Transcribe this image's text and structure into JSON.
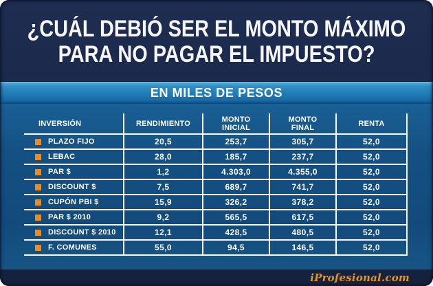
{
  "title": {
    "line1": "¿CUÁL DEBIÓ SER EL MONTO MÁXIMO",
    "line2": "PARA NO PAGAR EL IMPUESTO?"
  },
  "band": {
    "label": "EN MILES DE PESOS"
  },
  "table": {
    "columns": [
      "INVERSIÓN",
      "RENDIMIENTO",
      "MONTO\nINICIAL",
      "MONTO\nFINAL",
      "RENTA"
    ],
    "rows": [
      {
        "label": "PLAZO FIJO",
        "values": [
          "20,5",
          "253,7",
          "305,7",
          "52,0"
        ]
      },
      {
        "label": "LEBAC",
        "values": [
          "28,0",
          "185,7",
          "237,7",
          "52,0"
        ]
      },
      {
        "label": "PAR $",
        "values": [
          "1,2",
          "4.303,0",
          "4.355,0",
          "52,0"
        ]
      },
      {
        "label": "DISCOUNT $",
        "values": [
          "7,5",
          "689,7",
          "741,7",
          "52,0"
        ]
      },
      {
        "label": "CUPÓN PBI $",
        "values": [
          "15,9",
          "326,2",
          "378,2",
          "52,0"
        ]
      },
      {
        "label": "PAR $ 2010",
        "values": [
          "9,2",
          "565,5",
          "617,5",
          "52,0"
        ]
      },
      {
        "label": "DISCOUNT $ 2010",
        "values": [
          "12,1",
          "428,5",
          "480,5",
          "52,0"
        ]
      },
      {
        "label": "F. COMUNES",
        "values": [
          "55,0",
          "94,5",
          "146,5",
          "52,0"
        ]
      }
    ]
  },
  "footer": {
    "brand": "iProfesional.com"
  },
  "colors": {
    "accent_orange": "#ee8b1e",
    "brand_orange": "#e6941f",
    "title_navy": "#1c2a4c",
    "band_blue": "#2f8cc4",
    "body_blue": "#124a7b",
    "footer_navy": "#15223e",
    "line_white": "#ffffff"
  },
  "chart_data": {
    "type": "table",
    "title": "¿CUÁL DEBIÓ SER EL MONTO MÁXIMO PARA NO PAGAR EL IMPUESTO?",
    "subtitle": "EN MILES DE PESOS",
    "columns": [
      "INVERSIÓN",
      "RENDIMIENTO",
      "MONTO INICIAL",
      "MONTO FINAL",
      "RENTA"
    ],
    "rows": [
      [
        "PLAZO FIJO",
        20.5,
        253.7,
        305.7,
        52.0
      ],
      [
        "LEBAC",
        28.0,
        185.7,
        237.7,
        52.0
      ],
      [
        "PAR $",
        1.2,
        4303.0,
        4355.0,
        52.0
      ],
      [
        "DISCOUNT $",
        7.5,
        689.7,
        741.7,
        52.0
      ],
      [
        "CUPÓN PBI $",
        15.9,
        326.2,
        378.2,
        52.0
      ],
      [
        "PAR $ 2010",
        9.2,
        565.5,
        617.5,
        52.0
      ],
      [
        "DISCOUNT $ 2010",
        12.1,
        428.5,
        480.5,
        52.0
      ],
      [
        "F. COMUNES",
        55.0,
        94.5,
        146.5,
        52.0
      ]
    ],
    "source": "iProfesional.com"
  }
}
